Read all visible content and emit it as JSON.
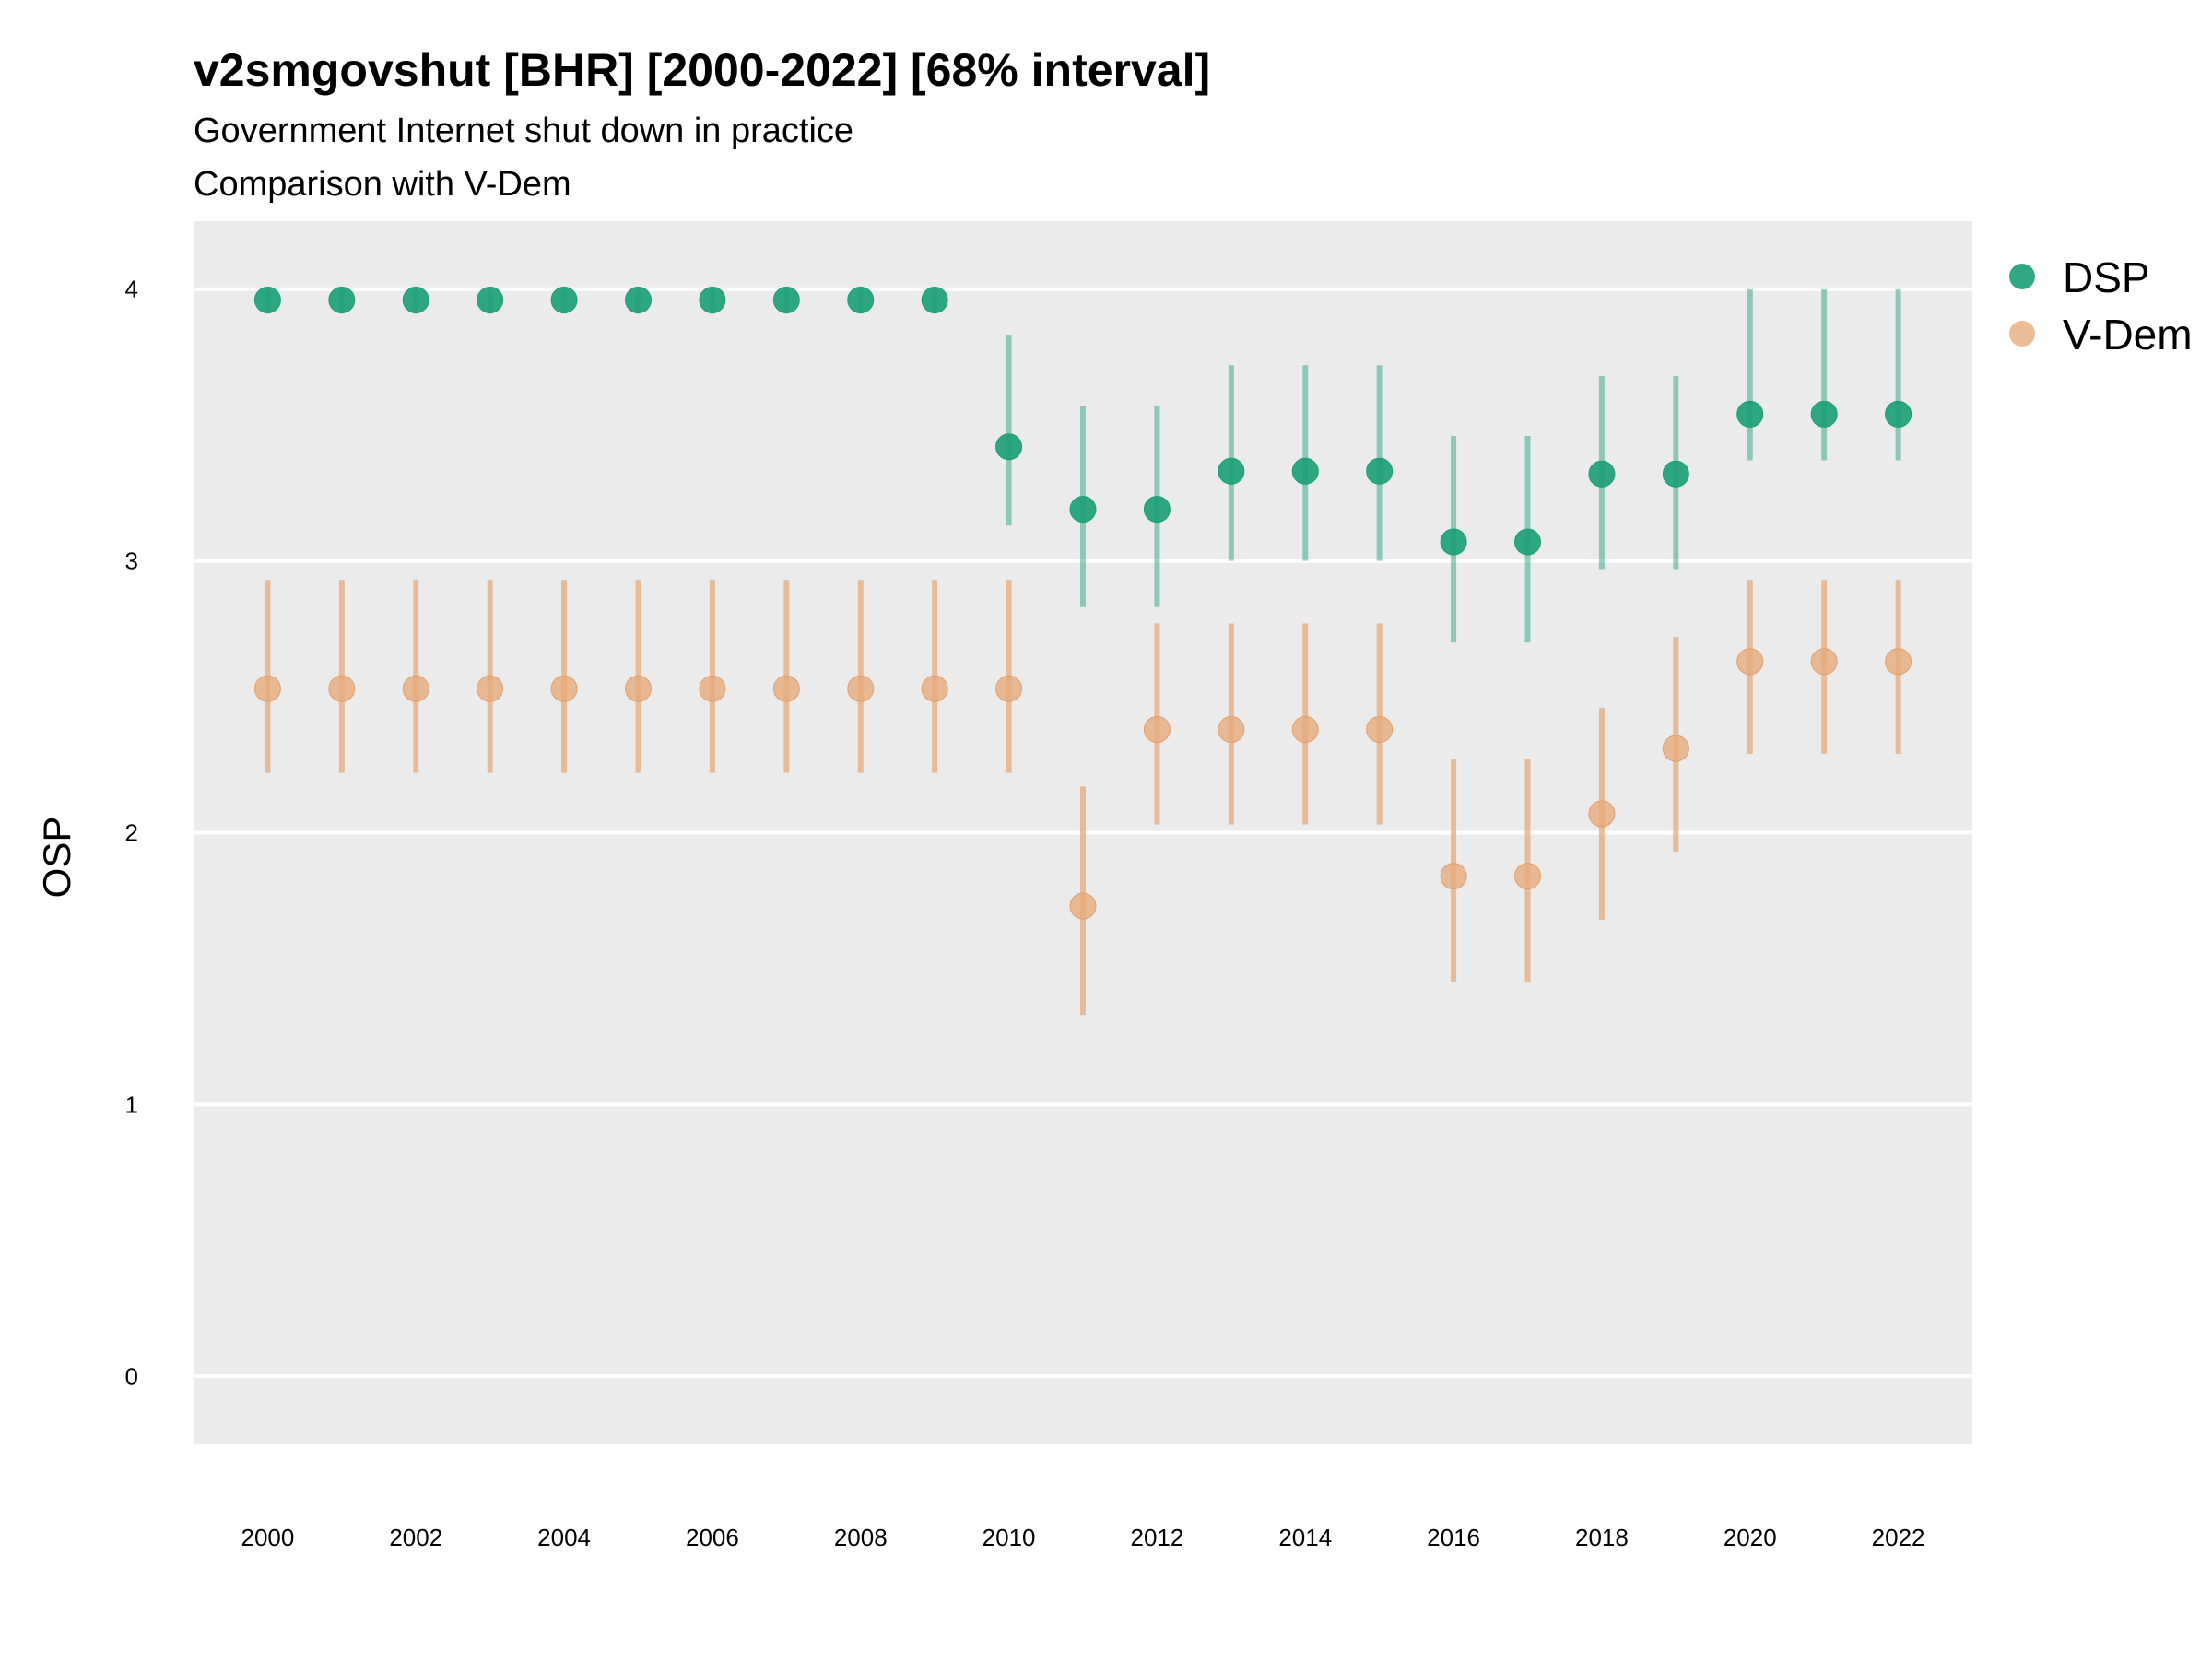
{
  "chart_data": {
    "type": "scatter",
    "title": "v2smgovshut [BHR] [2000-2022] [68% interval]",
    "subtitle": [
      "Government Internet shut down in practice",
      "Comparison with V-Dem"
    ],
    "xlabel": "",
    "ylabel": "OSP",
    "x": [
      2000,
      2001,
      2002,
      2003,
      2004,
      2005,
      2006,
      2007,
      2008,
      2009,
      2010,
      2011,
      2012,
      2013,
      2014,
      2015,
      2016,
      2017,
      2018,
      2019,
      2020,
      2021,
      2022
    ],
    "xticks": [
      "2000",
      "2002",
      "2004",
      "2006",
      "2008",
      "2010",
      "2012",
      "2014",
      "2016",
      "2018",
      "2020",
      "2022"
    ],
    "yticks": [
      "0",
      "1",
      "2",
      "3",
      "4"
    ],
    "ylim": [
      -0.25,
      4.25
    ],
    "xlim": [
      1999.0,
      2023.0
    ],
    "grid": true,
    "legend_position": "right",
    "series": [
      {
        "name": "DSP",
        "color": "#1b9e77",
        "values": [
          3.96,
          3.96,
          3.96,
          3.96,
          3.96,
          3.96,
          3.96,
          3.96,
          3.96,
          3.96,
          3.42,
          3.19,
          3.19,
          3.33,
          3.33,
          3.33,
          3.07,
          3.07,
          3.32,
          3.32,
          3.54,
          3.54,
          3.54
        ],
        "lower": [
          3.91,
          3.91,
          3.91,
          3.91,
          3.91,
          3.91,
          3.91,
          3.91,
          3.91,
          3.91,
          3.13,
          2.83,
          2.83,
          3.0,
          3.0,
          3.0,
          2.7,
          2.7,
          2.97,
          2.97,
          3.37,
          3.37,
          3.37
        ],
        "upper": [
          4.0,
          4.0,
          4.0,
          4.0,
          4.0,
          4.0,
          4.0,
          4.0,
          4.0,
          4.0,
          3.83,
          3.57,
          3.57,
          3.72,
          3.72,
          3.72,
          3.46,
          3.46,
          3.68,
          3.68,
          4.0,
          4.0,
          4.0
        ]
      },
      {
        "name": "V-Dem",
        "color": "#e6ab7c",
        "values": [
          2.53,
          2.53,
          2.53,
          2.53,
          2.53,
          2.53,
          2.53,
          2.53,
          2.53,
          2.53,
          2.53,
          1.73,
          2.38,
          2.38,
          2.38,
          2.38,
          1.84,
          1.84,
          2.07,
          2.31,
          2.63,
          2.63,
          2.63
        ],
        "lower": [
          2.22,
          2.22,
          2.22,
          2.22,
          2.22,
          2.22,
          2.22,
          2.22,
          2.22,
          2.22,
          2.22,
          1.33,
          2.03,
          2.03,
          2.03,
          2.03,
          1.45,
          1.45,
          1.68,
          1.93,
          2.29,
          2.29,
          2.29
        ],
        "upper": [
          2.93,
          2.93,
          2.93,
          2.93,
          2.93,
          2.93,
          2.93,
          2.93,
          2.93,
          2.93,
          2.93,
          2.17,
          2.77,
          2.77,
          2.77,
          2.77,
          2.27,
          2.27,
          2.46,
          2.72,
          2.93,
          2.93,
          2.93
        ]
      }
    ]
  }
}
